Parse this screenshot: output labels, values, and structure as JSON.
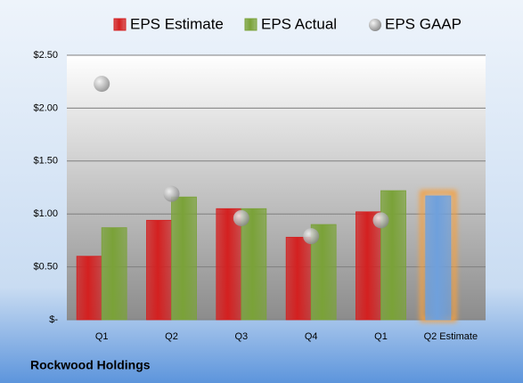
{
  "chart_data": {
    "type": "bar",
    "caption": "Rockwood Holdings",
    "categories": [
      "Q1",
      "Q2",
      "Q3",
      "Q4",
      "Q1",
      "Q2 Estimate"
    ],
    "series": [
      {
        "name": "EPS Estimate",
        "type": "bar",
        "color": "#d42020",
        "values": [
          0.6,
          0.94,
          1.05,
          0.78,
          1.02,
          1.17
        ],
        "colors": [
          "#d42020",
          "#d42020",
          "#d42020",
          "#d42020",
          "#d42020",
          "#6fa0dc"
        ]
      },
      {
        "name": "EPS Actual",
        "type": "bar",
        "color": "#7aa238",
        "values": [
          0.87,
          1.16,
          1.05,
          0.9,
          1.22,
          null
        ]
      },
      {
        "name": "EPS GAAP",
        "type": "scatter",
        "color": "#a6a6a6",
        "values": [
          2.23,
          1.19,
          0.96,
          0.79,
          0.94,
          null
        ]
      }
    ],
    "ylim": [
      0,
      2.5
    ],
    "yticks": [
      {
        "value": 0,
        "label": "$-"
      },
      {
        "value": 0.5,
        "label": "$0.50"
      },
      {
        "value": 1,
        "label": "$1.00"
      },
      {
        "value": 1.5,
        "label": "$1.50"
      },
      {
        "value": 2,
        "label": "$2.00"
      },
      {
        "value": 2.5,
        "label": "$2.50"
      }
    ],
    "grid": true
  }
}
